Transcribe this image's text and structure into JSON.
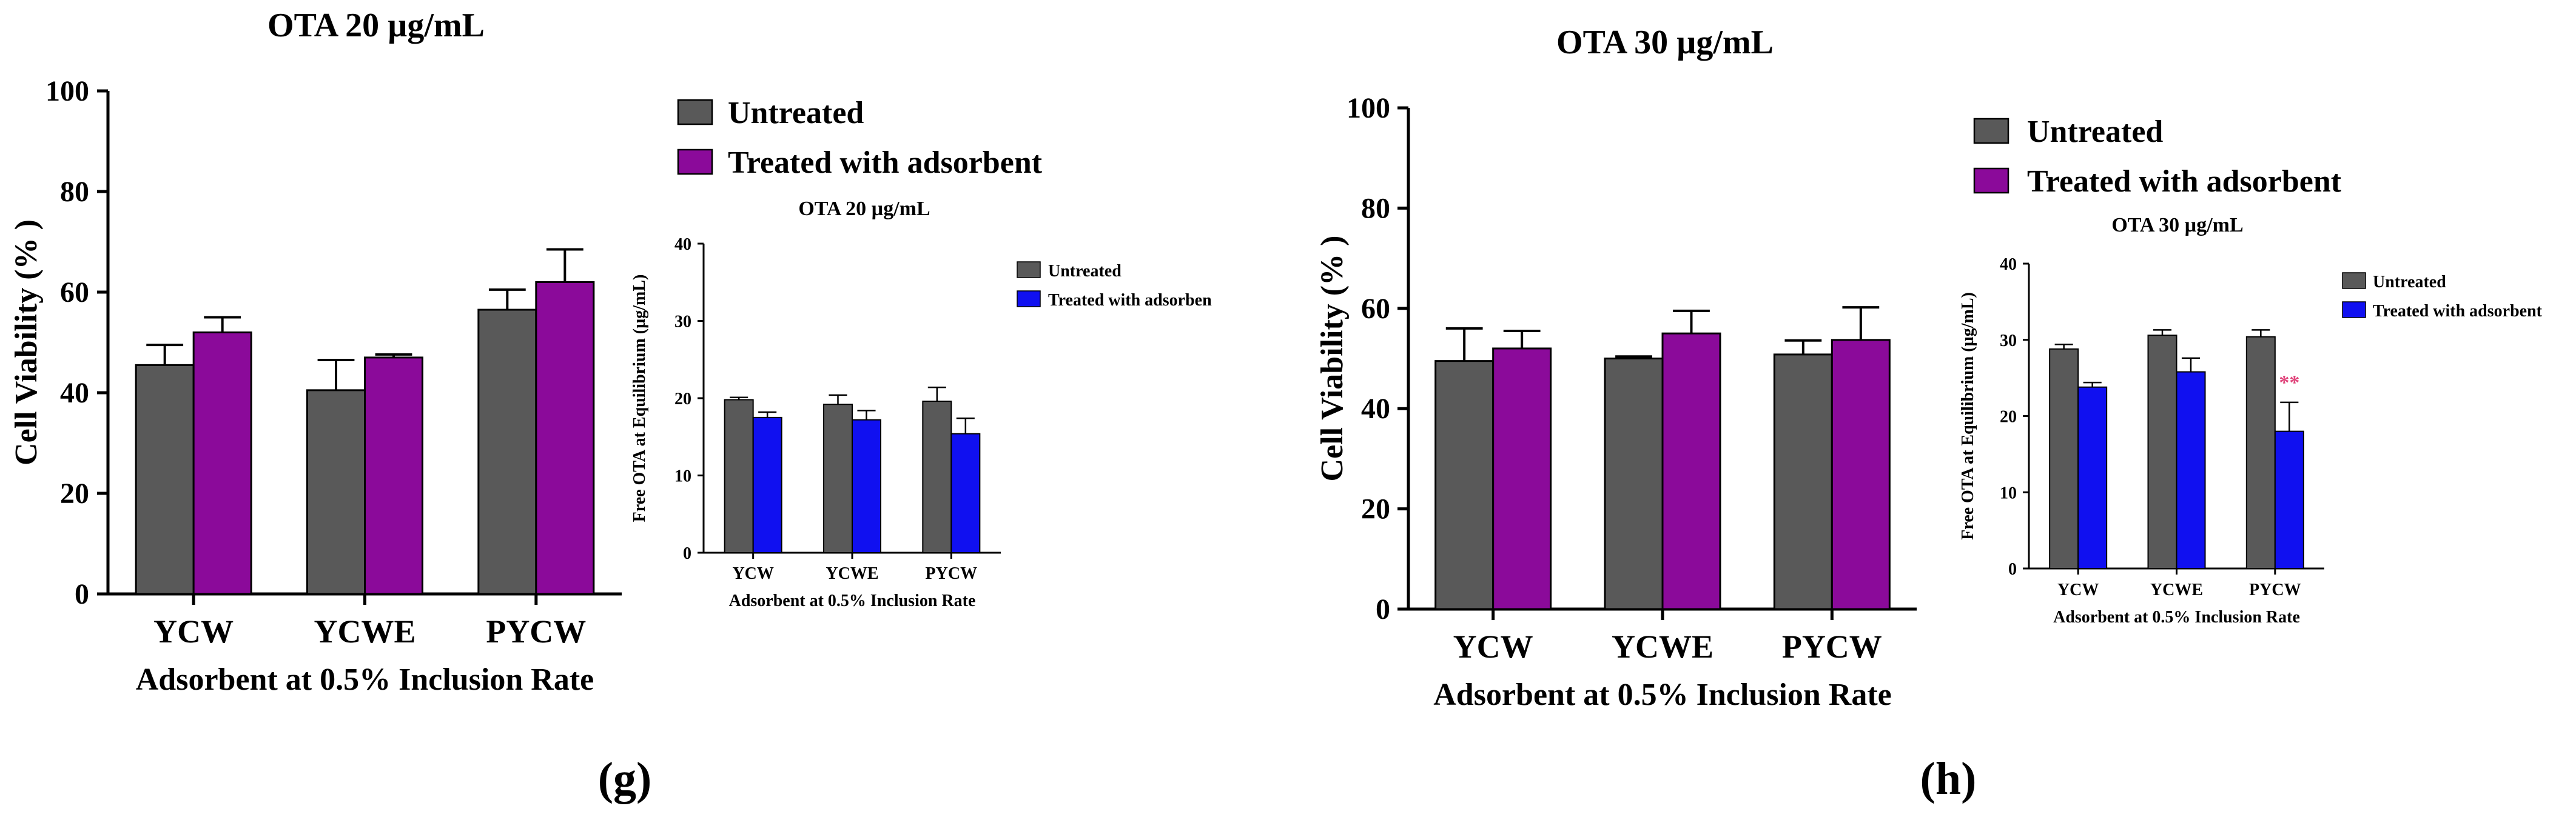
{
  "colors": {
    "untreated": "#595959",
    "treated_main": "#8B0A9A",
    "treated_inset": "#1010F0",
    "significance": "#E0457B"
  },
  "chart_data": [
    {
      "id": "g-main",
      "type": "bar",
      "title": "OTA 20 µg/mL",
      "xlabel": "Adsorbent at 0.5% Inclusion Rate",
      "ylabel": "Cell Viability (% )",
      "categories": [
        "YCW",
        "YCWE",
        "PYCW"
      ],
      "ylim": [
        0,
        100
      ],
      "yticks": [
        0,
        20,
        40,
        60,
        80,
        100
      ],
      "legend_position": "right",
      "series": [
        {
          "name": "Untreated",
          "values": [
            45.5,
            40.5,
            56.5
          ],
          "errors": [
            4,
            6,
            4
          ]
        },
        {
          "name": "Treated with adsorbent",
          "values": [
            52,
            47,
            62
          ],
          "errors": [
            3,
            0.6,
            6.5
          ]
        }
      ]
    },
    {
      "id": "g-inset",
      "type": "bar",
      "title": "OTA 20 µg/mL",
      "xlabel": "Adsorbent at 0.5% Inclusion Rate",
      "ylabel": "Free OTA at Equilibrium (µg/mL)",
      "categories": [
        "YCW",
        "YCWE",
        "PYCW"
      ],
      "ylim": [
        0,
        40
      ],
      "yticks": [
        0,
        10,
        20,
        30,
        40
      ],
      "legend_position": "right",
      "series": [
        {
          "name": "Untreated",
          "values": [
            19.8,
            19.2,
            19.6
          ],
          "errors": [
            0.3,
            1.2,
            1.8
          ]
        },
        {
          "name": "Treated with adsorben",
          "values": [
            17.5,
            17.2,
            15.4
          ],
          "errors": [
            0.7,
            1.2,
            2
          ]
        }
      ]
    },
    {
      "id": "h-main",
      "type": "bar",
      "title": "OTA 30 µg/mL",
      "xlabel": "Adsorbent at 0.5% Inclusion Rate",
      "ylabel": "Cell Viability (% )",
      "categories": [
        "YCW",
        "YCWE",
        "PYCW"
      ],
      "ylim": [
        0,
        100
      ],
      "yticks": [
        0,
        20,
        40,
        60,
        80,
        100
      ],
      "legend_position": "right",
      "series": [
        {
          "name": "Untreated",
          "values": [
            49.5,
            50,
            50.8
          ],
          "errors": [
            6.5,
            0.4,
            2.8
          ]
        },
        {
          "name": "Treated with adsorbent",
          "values": [
            52,
            55,
            53.7
          ],
          "errors": [
            3.5,
            4.5,
            6.5
          ]
        }
      ]
    },
    {
      "id": "h-inset",
      "type": "bar",
      "title": "OTA 30 µg/mL",
      "xlabel": "Adsorbent at 0.5% Inclusion Rate",
      "ylabel": "Free OTA at Equilibrium (µg/mL)",
      "categories": [
        "YCW",
        "YCWE",
        "PYCW"
      ],
      "ylim": [
        0,
        40
      ],
      "yticks": [
        0,
        10,
        20,
        30,
        40
      ],
      "legend_position": "right",
      "series": [
        {
          "name": "Untreated",
          "values": [
            28.8,
            30.6,
            30.4
          ],
          "errors": [
            0.6,
            0.7,
            0.9
          ]
        },
        {
          "name": "Treated with adsorbent",
          "values": [
            23.8,
            25.8,
            18
          ],
          "errors": [
            0.6,
            1.8,
            3.8
          ]
        }
      ],
      "annotations": [
        {
          "category": "PYCW",
          "series": 1,
          "text": "**"
        }
      ]
    }
  ],
  "panel_labels": [
    "(g)",
    "(h)"
  ]
}
